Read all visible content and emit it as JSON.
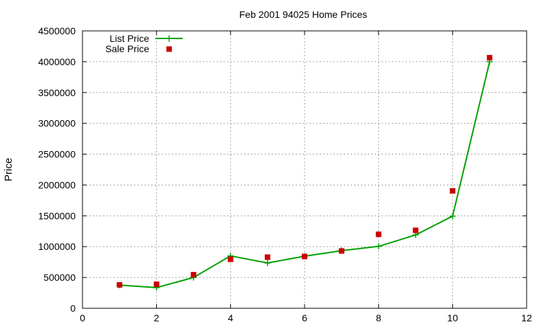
{
  "chart_data": {
    "type": "line",
    "title": "Feb 2001 94025 Home Prices",
    "xlabel": "",
    "ylabel": "Price",
    "xlim": [
      0,
      12
    ],
    "ylim": [
      0,
      4500000
    ],
    "x_ticks": [
      0,
      2,
      4,
      6,
      8,
      10,
      12
    ],
    "y_ticks": [
      0,
      500000,
      1000000,
      1500000,
      2000000,
      2500000,
      3000000,
      3500000,
      4000000,
      4500000
    ],
    "grid": true,
    "legend_position": "top-left",
    "series": [
      {
        "name": "List Price",
        "style": "line-with-plus-markers",
        "color": "#00a000",
        "x": [
          1,
          2,
          3,
          4,
          5,
          6,
          7,
          8,
          9,
          10,
          11
        ],
        "values": [
          375000,
          335000,
          500000,
          850000,
          735000,
          845000,
          935000,
          1005000,
          1190000,
          1495000,
          4000000
        ]
      },
      {
        "name": "Sale Price",
        "style": "square-markers",
        "color": "#cc0000",
        "x": [
          1,
          2,
          3,
          4,
          5,
          6,
          7,
          8,
          9,
          10,
          11
        ],
        "values": [
          380000,
          390000,
          545000,
          795000,
          830000,
          840000,
          930000,
          1200000,
          1265000,
          1905000,
          4065000
        ]
      }
    ]
  }
}
